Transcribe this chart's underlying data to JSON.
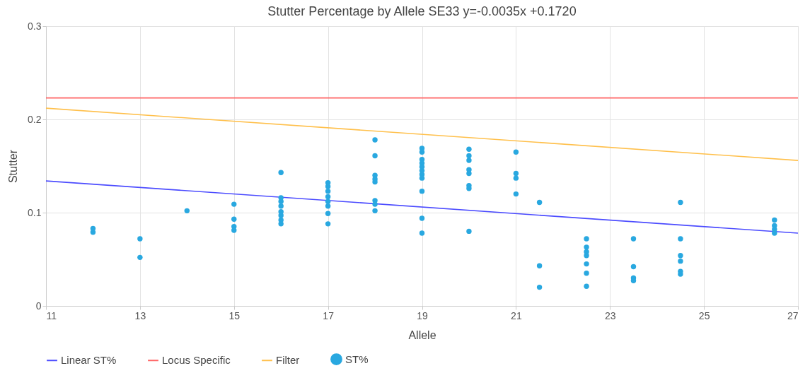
{
  "chart_data": {
    "type": "scatter",
    "title": "Stutter Percentage by Allele SE33 y=-0.0035x +0.1720",
    "xlabel": "Allele",
    "ylabel": "Stutter",
    "xlim": [
      11,
      27
    ],
    "xticks": [
      11,
      13,
      15,
      17,
      19,
      21,
      23,
      25,
      27
    ],
    "ylim": [
      0,
      0.3
    ],
    "yticks": [
      0,
      0.1,
      0.2,
      0.3
    ],
    "grid": true,
    "legend": "bottom",
    "series": [
      {
        "name": "Linear ST%",
        "type": "line",
        "color": "#4c4cff",
        "marker": "none",
        "x": [
          11,
          27
        ],
        "values": [
          0.134,
          0.078
        ]
      },
      {
        "name": "Locus Specific",
        "type": "line",
        "color": "#ff6666",
        "marker": "none",
        "x": [
          11,
          27
        ],
        "values": [
          0.223,
          0.223
        ]
      },
      {
        "name": "Filter",
        "type": "line",
        "color": "#ffc04c",
        "marker": "none",
        "x": [
          11,
          27
        ],
        "values": [
          0.212,
          0.156
        ]
      },
      {
        "name": "ST%",
        "type": "scatter",
        "color": "#29a8e0",
        "marker": "circle",
        "x": [
          12,
          12,
          13,
          13,
          14,
          15,
          15,
          15,
          15,
          16,
          16,
          16,
          16,
          16,
          16,
          16,
          16,
          17,
          17,
          17,
          17,
          17,
          17,
          17,
          17,
          18,
          18,
          18,
          18,
          18,
          18,
          18,
          18,
          19,
          19,
          19,
          19,
          19,
          19,
          19,
          19,
          19,
          19,
          19,
          20,
          20,
          20,
          20,
          20,
          20,
          20,
          20,
          21,
          21,
          21,
          21,
          21.5,
          21.5,
          21.5,
          22.5,
          22.5,
          22.5,
          22.5,
          22.5,
          22.5,
          22.5,
          23.5,
          23.5,
          23.5,
          23.5,
          24.5,
          24.5,
          24.5,
          24.5,
          24.5,
          24.5,
          26.5,
          26.5,
          26.5,
          26.5
        ],
        "values": [
          0.083,
          0.079,
          0.072,
          0.052,
          0.102,
          0.109,
          0.093,
          0.085,
          0.081,
          0.143,
          0.116,
          0.112,
          0.107,
          0.101,
          0.097,
          0.092,
          0.088,
          0.132,
          0.128,
          0.123,
          0.117,
          0.112,
          0.107,
          0.099,
          0.088,
          0.178,
          0.161,
          0.14,
          0.136,
          0.133,
          0.113,
          0.109,
          0.102,
          0.169,
          0.165,
          0.157,
          0.153,
          0.149,
          0.145,
          0.141,
          0.137,
          0.123,
          0.094,
          0.078,
          0.168,
          0.161,
          0.156,
          0.146,
          0.142,
          0.129,
          0.126,
          0.08,
          0.165,
          0.142,
          0.137,
          0.12,
          0.111,
          0.043,
          0.02,
          0.072,
          0.063,
          0.058,
          0.054,
          0.045,
          0.035,
          0.021,
          0.072,
          0.042,
          0.03,
          0.027,
          0.111,
          0.072,
          0.054,
          0.048,
          0.037,
          0.034,
          0.092,
          0.086,
          0.082,
          0.078
        ]
      }
    ]
  }
}
